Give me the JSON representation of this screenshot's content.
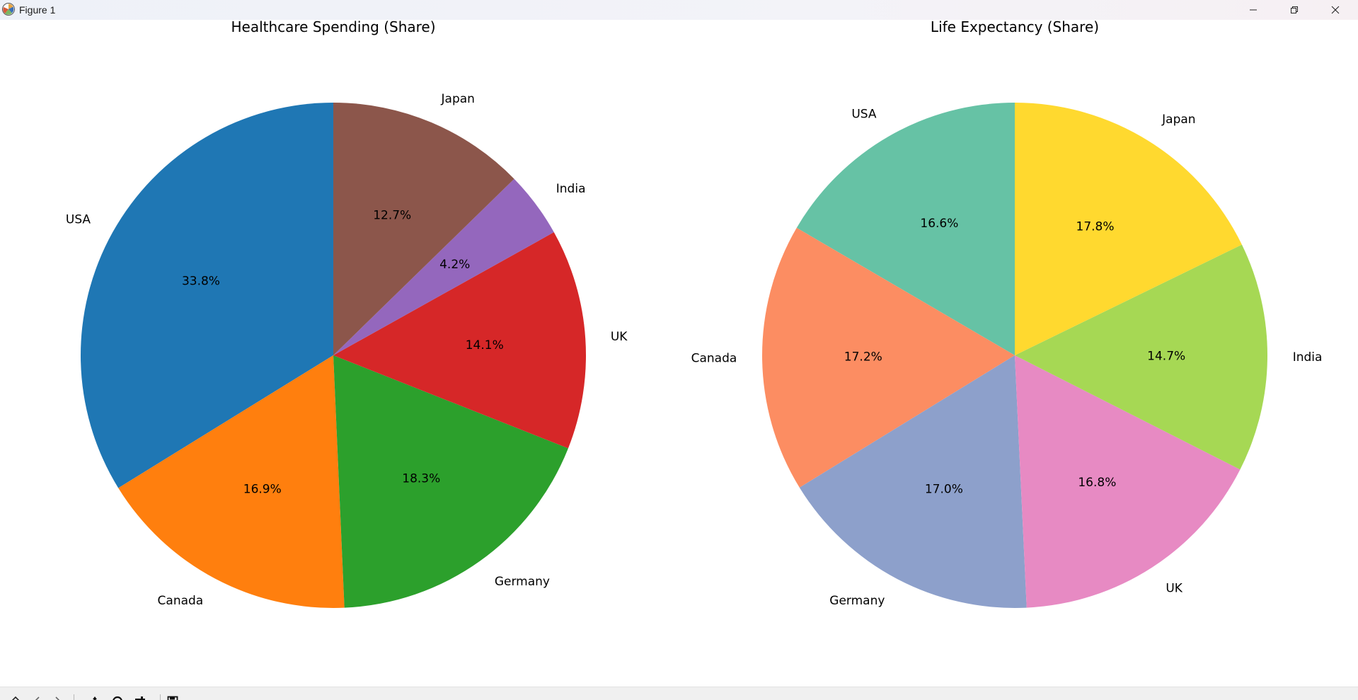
{
  "window": {
    "title": "Figure 1",
    "icons": {
      "app": "matplotlib-logo-icon",
      "minimize": "minimize-icon",
      "maximize": "restore-icon",
      "close": "close-icon"
    }
  },
  "toolbar": {
    "items": [
      "home-icon",
      "back-icon",
      "forward-icon",
      "pan-icon",
      "zoom-icon",
      "configure-subplots-icon",
      "save-icon"
    ]
  },
  "chart_data": [
    {
      "type": "pie",
      "title": "Healthcare Spending (Share)",
      "start_angle_deg": 90,
      "direction": "counterclockwise",
      "categories": [
        "USA",
        "Canada",
        "Germany",
        "UK",
        "India",
        "Japan"
      ],
      "values": [
        33.8,
        16.9,
        18.3,
        14.1,
        4.2,
        12.7
      ],
      "value_labels": [
        "33.8%",
        "16.9%",
        "18.3%",
        "14.1%",
        "4.2%",
        "12.7%"
      ],
      "colors": [
        "#1f77b4",
        "#ff7f0e",
        "#2ca02c",
        "#d62728",
        "#9467bd",
        "#8c564b"
      ]
    },
    {
      "type": "pie",
      "title": "Life Expectancy (Share)",
      "start_angle_deg": 90,
      "direction": "counterclockwise",
      "categories": [
        "USA",
        "Canada",
        "Germany",
        "UK",
        "India",
        "Japan"
      ],
      "values": [
        16.6,
        17.2,
        17.0,
        16.8,
        14.7,
        17.8
      ],
      "value_labels": [
        "16.6%",
        "17.2%",
        "17.0%",
        "16.8%",
        "14.7%",
        "17.8%"
      ],
      "colors": [
        "#66c2a5",
        "#fc8d62",
        "#8da0cb",
        "#e78ac3",
        "#a6d854",
        "#ffd92f"
      ]
    }
  ]
}
